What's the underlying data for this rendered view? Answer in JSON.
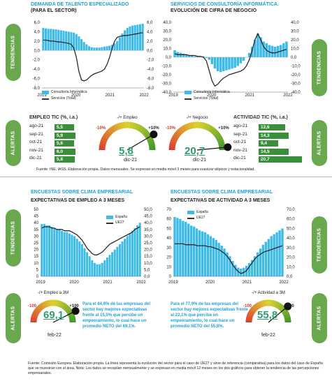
{
  "top_left": {
    "title": "DEMANDA DE TALENTO ESPECIALIZADO",
    "subtitle": "(PARA EL SECTOR)",
    "tab_tendencias": "TENDENCIAS",
    "tab_alertas": "ALERTAS",
    "legend_bar": "Consultoría Informática",
    "legend_line": "Servicios (Total)",
    "table_title": "EMPLEO TIC (%, i.a.)",
    "table": [
      {
        "label": "ago-21",
        "value": "5,5"
      },
      {
        "label": "sep-21",
        "value": "5,9"
      },
      {
        "label": "oct-21",
        "value": "5,6"
      },
      {
        "label": "nov-21",
        "value": "6,0"
      },
      {
        "label": "dic-21",
        "value": "5,8"
      }
    ],
    "gauge": {
      "title": "-/+ Empleo",
      "value": "5,8",
      "min_label": "-10%",
      "max_label": "+10%",
      "date": "dic-21"
    }
  },
  "top_right": {
    "title": "SERVICIOS DE CONSULTORÍA INFORMÁTICA.",
    "subtitle": "EVOLUCIÓN DE CIFRA DE NEGOCIO",
    "tab_tendencias": "TENDENCIAS",
    "tab_alertas": "ALERTAS",
    "legend_bar": "Consultoría Informática",
    "legend_line": "Servicios (Total)",
    "table_title": "ACTIVIDAD TIC (%, i.a.)",
    "table": [
      {
        "label": "ago-21",
        "value": "12,6"
      },
      {
        "label": "sep-21",
        "value": "14,3"
      },
      {
        "label": "oct-21",
        "value": "9,4"
      },
      {
        "label": "nov-21",
        "value": "14,5"
      },
      {
        "label": "dic-21",
        "value": "20,7"
      }
    ],
    "gauge": {
      "title": "-/+ Negocio",
      "value": "20,7",
      "min_label": "-10%",
      "max_label": "+10%",
      "date": "dic-21"
    }
  },
  "source1": "Fuente: INE, IASS. Elaboración propia. Datos mensuales. Se expresan en media móvil 3 meses  para suavizar atípicos y estacionalidad.",
  "bottom_left": {
    "title": "ENCUESTAS SOBRE CLIMA EMPRESARIAL",
    "subtitle": "EXPECTATIVAS DE EMPLEO A 3 MESES",
    "tab_tendencias": "TENDENCIAS",
    "tab_alertas": "ALERTAS",
    "legend_bar": "España",
    "legend_line": "UE27",
    "gauge": {
      "title": "-/+ Empleo a 3M",
      "value": "69,1",
      "min_label": "-100",
      "max_label": "+100",
      "date": "feb-22"
    },
    "paragraph": "Para el 84,6% de las empresas del sector hay mejores expectativas frente al 15,5% que percibe un empeoramiento, lo cual hace un promedio NETO del 69,1%."
  },
  "bottom_right": {
    "title": "ENCUESTAS SOBRE CLIMA EMPRESARIAL",
    "subtitle": "EXPECTATIVAS DE ACTIVIDAD A 3 MESES",
    "tab_tendencias": "TENDENCIAS",
    "tab_alertas": "ALERTAS",
    "legend_bar": "España",
    "legend_line": "UE27",
    "gauge": {
      "title": "-/+ Actividad a 3M",
      "value": "55,8",
      "min_label": "-100",
      "max_label": "+100",
      "date": "feb-22"
    },
    "paragraph": "Para el 77,9% de las empresas del sector hay mejores expectativas frente al 22,1% que percibe un empeoramiento, lo cual hace un promedio NETO del 55,8%."
  },
  "source2": "Fuente: Comisión Europea. Elaboración propia. La línea representa la evolución del sector para el caso de UE27 y sirve de referencia (comparativa) para los datos del caso de España que se muestran con el área. Nota: Los datos se recopilan mensualmente y  se expresan en media móvil 12 meses  en los dos gráficos para obtener la tendencia de las percepciones empresariales.",
  "colors": {
    "accent": "#1fa3d6",
    "bar": "#3dbbe6",
    "green": "#6aa84f",
    "dark_green": "#3a8f3a"
  },
  "chart_data": [
    {
      "type": "bar",
      "x_ticks": [
        "2019",
        "2020",
        "2021",
        "2022"
      ],
      "ylim_left": [
        -8,
        6
      ],
      "ylim_right": [
        -8,
        6
      ],
      "yticks_left": [
        "6,0",
        "4,0",
        "2,0",
        "0,0",
        "-2,0",
        "-4,0",
        "-6,0",
        "-8,0"
      ],
      "yticks_right": [
        "6,0",
        "4,0",
        "2,0",
        "0,0",
        "-2,0",
        "-4,0",
        "-6,0",
        "-8,0"
      ],
      "series": [
        {
          "name": "Consultoría Informática",
          "type": "bar",
          "values": [
            4.8,
            4.7,
            4.6,
            4.6,
            4.5,
            4.5,
            4.4,
            4.3,
            4.2,
            4.1,
            4.0,
            3.9,
            3.8,
            3.5,
            3.0,
            2.4,
            1.8,
            1.3,
            0.9,
            0.7,
            0.6,
            0.6,
            0.6,
            0.7,
            0.8,
            0.9,
            1.0,
            1.2,
            1.5,
            2.0,
            2.8,
            3.6,
            4.3,
            4.8,
            5.1,
            5.3,
            5.4,
            5.5,
            5.6,
            5.7
          ]
        },
        {
          "name": "Servicios (Total)",
          "type": "line",
          "values": [
            2.2,
            2.2,
            2.1,
            2.0,
            2.0,
            1.9,
            1.8,
            1.8,
            1.7,
            1.6,
            1.5,
            1.3,
            0.5,
            -1.5,
            -4.5,
            -6.3,
            -6.5,
            -6.3,
            -5.8,
            -5.3,
            -5.0,
            -4.8,
            -4.6,
            -4.4,
            -4.0,
            -3.0,
            -1.5,
            0.5,
            2.0,
            2.8,
            3.0,
            3.1,
            3.2,
            3.2,
            3.3,
            3.4,
            3.5,
            3.6,
            3.7,
            3.8
          ]
        }
      ]
    },
    {
      "type": "bar",
      "x_ticks": [
        "2019",
        "2020",
        "2021",
        "2022"
      ],
      "ylim_left": [
        -40,
        40
      ],
      "ylim_right": [
        -40,
        40
      ],
      "yticks_left": [
        "40,0",
        "30,0",
        "20,0",
        "10,0",
        "0,0",
        "-10,0",
        "-20,0",
        "-30,0",
        "-40,0"
      ],
      "yticks_right": [
        "40,0",
        "30,0",
        "20,0",
        "10,0",
        "0,0",
        "-10,0",
        "-20,0",
        "-30,0",
        "-40,0"
      ],
      "series": [
        {
          "name": "Consultoría Informática",
          "type": "bar",
          "values": [
            8,
            6,
            5,
            4,
            3,
            2,
            2,
            1,
            1,
            0,
            1,
            -1,
            -3,
            -8,
            -13,
            -16,
            -17,
            -16,
            -15,
            -14,
            -13,
            -12,
            -10,
            -7,
            -4,
            0,
            5,
            12,
            20,
            27,
            23,
            18,
            16,
            14,
            13,
            12,
            13,
            14,
            16,
            18
          ]
        },
        {
          "name": "Servicios (Total)",
          "type": "line",
          "values": [
            4,
            3,
            3,
            3,
            3,
            2,
            2,
            2,
            1,
            1,
            0,
            -4,
            -15,
            -27,
            -33,
            -31,
            -27,
            -24,
            -22,
            -20,
            -19,
            -18,
            -17,
            -16,
            -14,
            -10,
            -3,
            8,
            20,
            27,
            20,
            12,
            8,
            6,
            5,
            5,
            6,
            7,
            8,
            9
          ]
        }
      ]
    },
    {
      "type": "bar",
      "x_ticks": [
        "2019",
        "2020",
        "2021",
        "2022"
      ],
      "ylim": [
        0,
        50
      ],
      "yticks_left": [
        "50",
        "45",
        "40",
        "35",
        "30",
        "25",
        "20",
        "15",
        "10",
        "5",
        "0"
      ],
      "yticks_right": [
        "50,0",
        "45,0",
        "40,0",
        "35,0",
        "30,0",
        "25,0",
        "20,0",
        "15,0",
        "10,0",
        "5,0",
        "0,0"
      ],
      "series": [
        {
          "name": "España",
          "type": "bar",
          "values": [
            39,
            39,
            38,
            38,
            37,
            36,
            35,
            35,
            34,
            33,
            33,
            32,
            31,
            30,
            28,
            26,
            24,
            21,
            18,
            15,
            12,
            10,
            9,
            9,
            10,
            12,
            14,
            16,
            18,
            20,
            22,
            24,
            26,
            28,
            30,
            32,
            34,
            36,
            38,
            40
          ]
        },
        {
          "name": "UE27",
          "type": "line",
          "values": [
            36,
            37,
            37,
            37,
            36,
            36,
            35,
            35,
            35,
            34,
            34,
            34,
            33,
            32,
            31,
            29,
            27,
            24,
            21,
            19,
            17,
            16,
            16,
            17,
            18,
            20,
            22,
            24,
            25,
            26,
            27,
            28,
            29,
            30,
            31,
            32,
            33,
            35,
            36,
            37
          ]
        }
      ]
    },
    {
      "type": "bar",
      "x_ticks": [
        "2019",
        "2020",
        "2021",
        "2022"
      ],
      "ylim": [
        0,
        70
      ],
      "yticks_left": [
        "70",
        "60",
        "50",
        "40",
        "30",
        "20",
        "10",
        "0"
      ],
      "yticks_right": [
        "70,0",
        "60,0",
        "50,0",
        "40,0",
        "30,0",
        "20,0",
        "10,0",
        "0,0"
      ],
      "series": [
        {
          "name": "España",
          "type": "bar",
          "values": [
            62,
            61,
            60,
            58,
            57,
            55,
            53,
            52,
            50,
            48,
            47,
            46,
            44,
            42,
            40,
            38,
            35,
            32,
            29,
            25,
            21,
            16,
            12,
            9,
            8,
            9,
            11,
            14,
            17,
            21,
            25,
            29,
            33,
            36,
            39,
            42,
            44,
            46,
            48,
            50
          ]
        },
        {
          "name": "UE27",
          "type": "line",
          "values": [
            34,
            34,
            34,
            34,
            33,
            33,
            33,
            33,
            32,
            32,
            32,
            32,
            31,
            31,
            30,
            29,
            28,
            26,
            24,
            21,
            17,
            12,
            8,
            5,
            3,
            4,
            6,
            10,
            14,
            18,
            21,
            23,
            25,
            26,
            27,
            28,
            29,
            30,
            31,
            32
          ]
        }
      ]
    }
  ]
}
